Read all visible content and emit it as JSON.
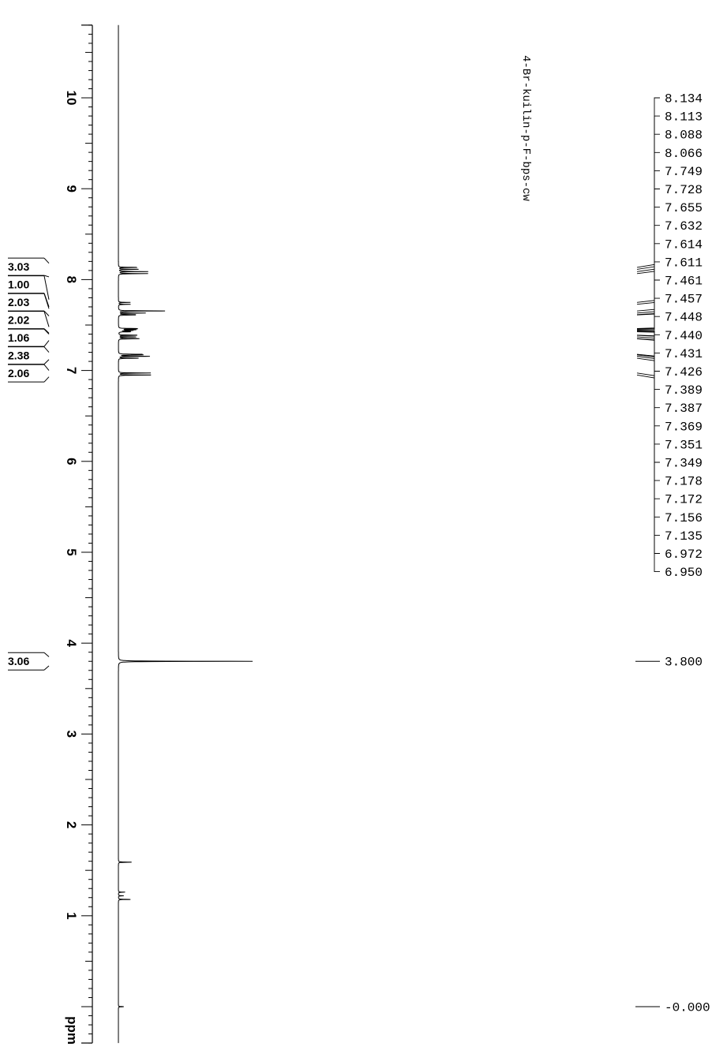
{
  "chart_data": {
    "type": "line",
    "title": "",
    "sample_name": "4-Br-kuilin-p-F-bps-cw",
    "xlabel": "ppm",
    "ylabel": "",
    "x_axis_reversed": true,
    "xlim": [
      -0.4,
      10.8
    ],
    "grid": false,
    "major_ticks": [
      "10",
      "9",
      "8",
      "7",
      "6",
      "5",
      "4",
      "3",
      "2",
      "1"
    ],
    "unit_label": "ppm",
    "peak_list": [
      "8.134",
      "8.113",
      "8.088",
      "8.066",
      "7.749",
      "7.728",
      "7.655",
      "7.632",
      "7.614",
      "7.611",
      "7.461",
      "7.457",
      "7.448",
      "7.440",
      "7.431",
      "7.426",
      "7.389",
      "7.387",
      "7.369",
      "7.351",
      "7.349",
      "7.178",
      "7.172",
      "7.156",
      "7.135",
      "6.972",
      "6.950"
    ],
    "single_peaks": [
      "3.800",
      "-0.000"
    ],
    "integrals": [
      {
        "value": "3.03",
        "from": 8.18,
        "to": 8.03
      },
      {
        "value": "1.00",
        "from": 7.78,
        "to": 7.7
      },
      {
        "value": "2.03",
        "from": 7.68,
        "to": 7.6
      },
      {
        "value": "2.02",
        "from": 7.48,
        "to": 7.41
      },
      {
        "value": "1.06",
        "from": 7.4,
        "to": 7.33
      },
      {
        "value": "2.38",
        "from": 7.2,
        "to": 7.12
      },
      {
        "value": "2.06",
        "from": 7.0,
        "to": 6.93
      },
      {
        "value": "3.06",
        "from": 3.85,
        "to": 3.75
      }
    ],
    "peaks": [
      {
        "ppm": 8.134,
        "height": 0.14
      },
      {
        "ppm": 8.113,
        "height": 0.15
      },
      {
        "ppm": 8.088,
        "height": 0.22
      },
      {
        "ppm": 8.066,
        "height": 0.23
      },
      {
        "ppm": 7.749,
        "height": 0.09
      },
      {
        "ppm": 7.728,
        "height": 0.09
      },
      {
        "ppm": 7.655,
        "height": 0.35
      },
      {
        "ppm": 7.632,
        "height": 0.2
      },
      {
        "ppm": 7.614,
        "height": 0.1
      },
      {
        "ppm": 7.611,
        "height": 0.1
      },
      {
        "ppm": 7.461,
        "height": 0.12
      },
      {
        "ppm": 7.457,
        "height": 0.12
      },
      {
        "ppm": 7.448,
        "height": 0.12
      },
      {
        "ppm": 7.44,
        "height": 0.1
      },
      {
        "ppm": 7.431,
        "height": 0.08
      },
      {
        "ppm": 7.426,
        "height": 0.08
      },
      {
        "ppm": 7.389,
        "height": 0.09
      },
      {
        "ppm": 7.387,
        "height": 0.09
      },
      {
        "ppm": 7.369,
        "height": 0.13
      },
      {
        "ppm": 7.351,
        "height": 0.1
      },
      {
        "ppm": 7.349,
        "height": 0.1
      },
      {
        "ppm": 7.178,
        "height": 0.17
      },
      {
        "ppm": 7.172,
        "height": 0.17
      },
      {
        "ppm": 7.156,
        "height": 0.23
      },
      {
        "ppm": 7.135,
        "height": 0.15
      },
      {
        "ppm": 6.972,
        "height": 0.24
      },
      {
        "ppm": 6.95,
        "height": 0.25
      },
      {
        "ppm": 3.8,
        "height": 1.0
      },
      {
        "ppm": 1.59,
        "height": 0.1
      },
      {
        "ppm": 1.26,
        "height": 0.05
      },
      {
        "ppm": 1.22,
        "height": 0.04
      },
      {
        "ppm": 1.18,
        "height": 0.09
      },
      {
        "ppm": 0.0,
        "height": 0.04
      }
    ]
  }
}
